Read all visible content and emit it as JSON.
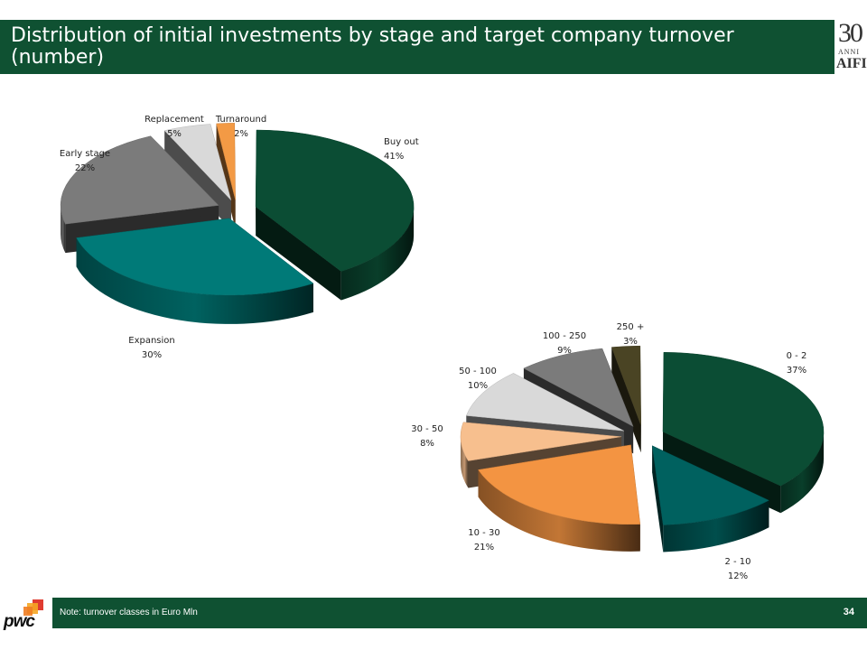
{
  "header": {
    "title": "Distribution of initial investments by stage and target company turnover (number)",
    "logo": {
      "number": "30",
      "anni": "ANNI",
      "aifi": "AIFI"
    }
  },
  "footer": {
    "note": "Note: turnover classes in Euro Mln",
    "page_number": "34",
    "brand": "pwc"
  },
  "chart_data": [
    {
      "type": "pie",
      "title": "",
      "categories": [
        "Buy out",
        "Expansion",
        "Early stage",
        "Replacement",
        "Turnaround"
      ],
      "values": [
        41,
        30,
        22,
        5,
        2
      ],
      "labels": [
        "41%",
        "30%",
        "22%",
        "5%",
        "2%"
      ],
      "colors": [
        "#0b4d34",
        "#007a78",
        "#7b7b7b",
        "#d9d9d9",
        "#f39a45"
      ],
      "style": "3d-exploded"
    },
    {
      "type": "pie",
      "title": "",
      "categories": [
        "0 - 2",
        "2 - 10",
        "10 - 30",
        "30 - 50",
        "50 - 100",
        "100 - 250",
        "250 +"
      ],
      "values": [
        37,
        12,
        21,
        8,
        10,
        9,
        3
      ],
      "labels": [
        "37%",
        "12%",
        "21%",
        "8%",
        "10%",
        "9%",
        "3%"
      ],
      "colors": [
        "#0b4d34",
        "#00615f",
        "#f39442",
        "#f7bf8e",
        "#d9d9d9",
        "#7b7b7b",
        "#4a4424"
      ],
      "style": "3d-exploded"
    }
  ]
}
